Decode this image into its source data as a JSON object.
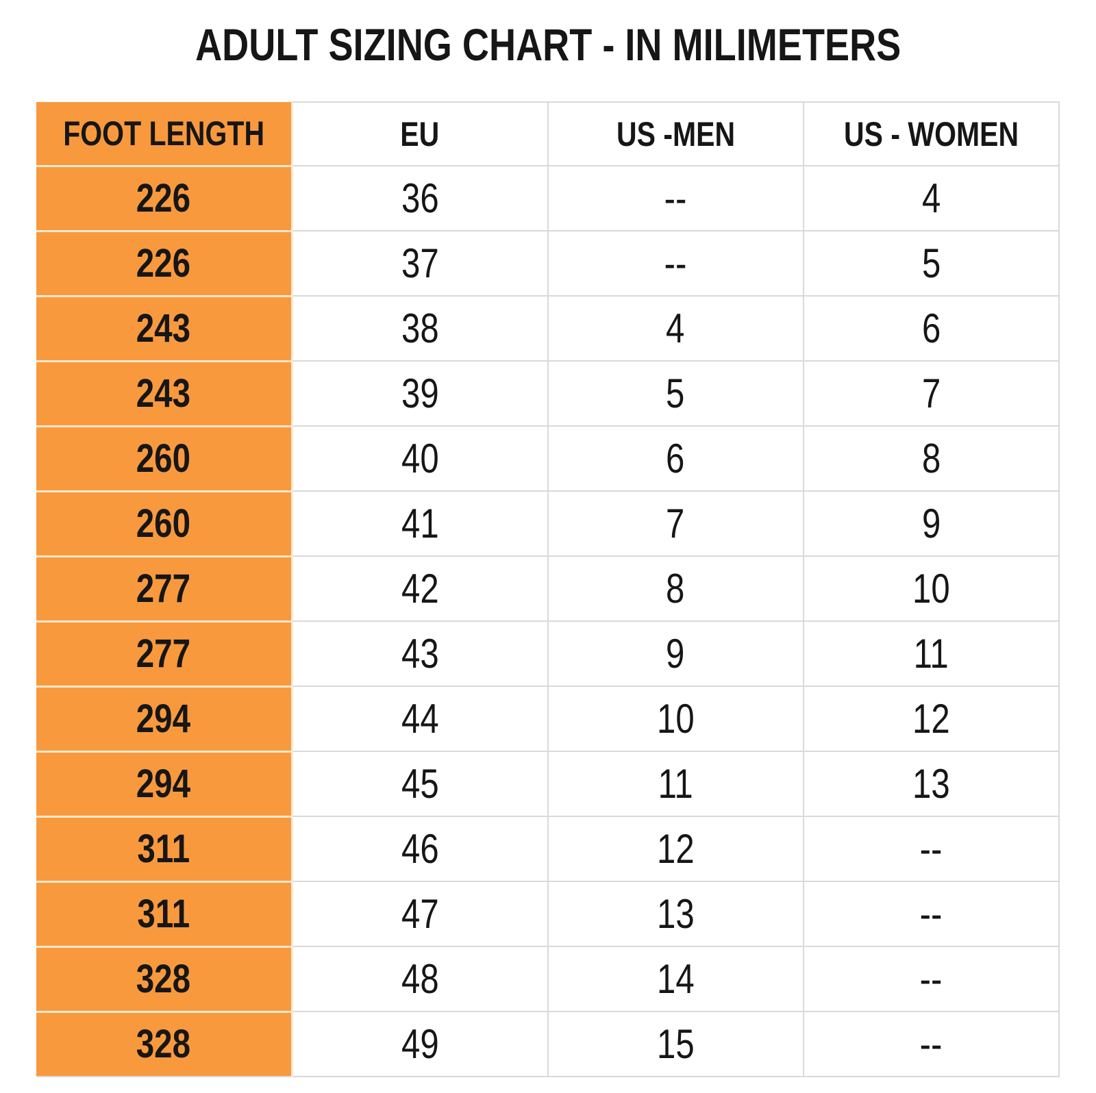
{
  "chart_data": {
    "type": "table",
    "title": "ADULT SIZING CHART - IN MILIMETERS",
    "columns": [
      "FOOT LENGTH",
      "EU",
      "US -MEN",
      "US - WOMEN"
    ],
    "rows": [
      [
        "226",
        "36",
        "--",
        "4"
      ],
      [
        "226",
        "37",
        "--",
        "5"
      ],
      [
        "243",
        "38",
        "4",
        "6"
      ],
      [
        "243",
        "39",
        "5",
        "7"
      ],
      [
        "260",
        "40",
        "6",
        "8"
      ],
      [
        "260",
        "41",
        "7",
        "9"
      ],
      [
        "277",
        "42",
        "8",
        "10"
      ],
      [
        "277",
        "43",
        "9",
        "11"
      ],
      [
        "294",
        "44",
        "10",
        "12"
      ],
      [
        "294",
        "45",
        "11",
        "13"
      ],
      [
        "311",
        "46",
        "12",
        "--"
      ],
      [
        "311",
        "47",
        "13",
        "--"
      ],
      [
        "328",
        "48",
        "14",
        "--"
      ],
      [
        "328",
        "49",
        "15",
        "--"
      ]
    ],
    "layout": {
      "grid": "on",
      "first_column_highlighted": true
    }
  },
  "colors": {
    "foot_length_column_fill": "#F8993E",
    "grid_line": "#D9D9D9",
    "orange_divider": "#FBE8D0",
    "text": "#161616",
    "background": "#FFFFFF"
  }
}
